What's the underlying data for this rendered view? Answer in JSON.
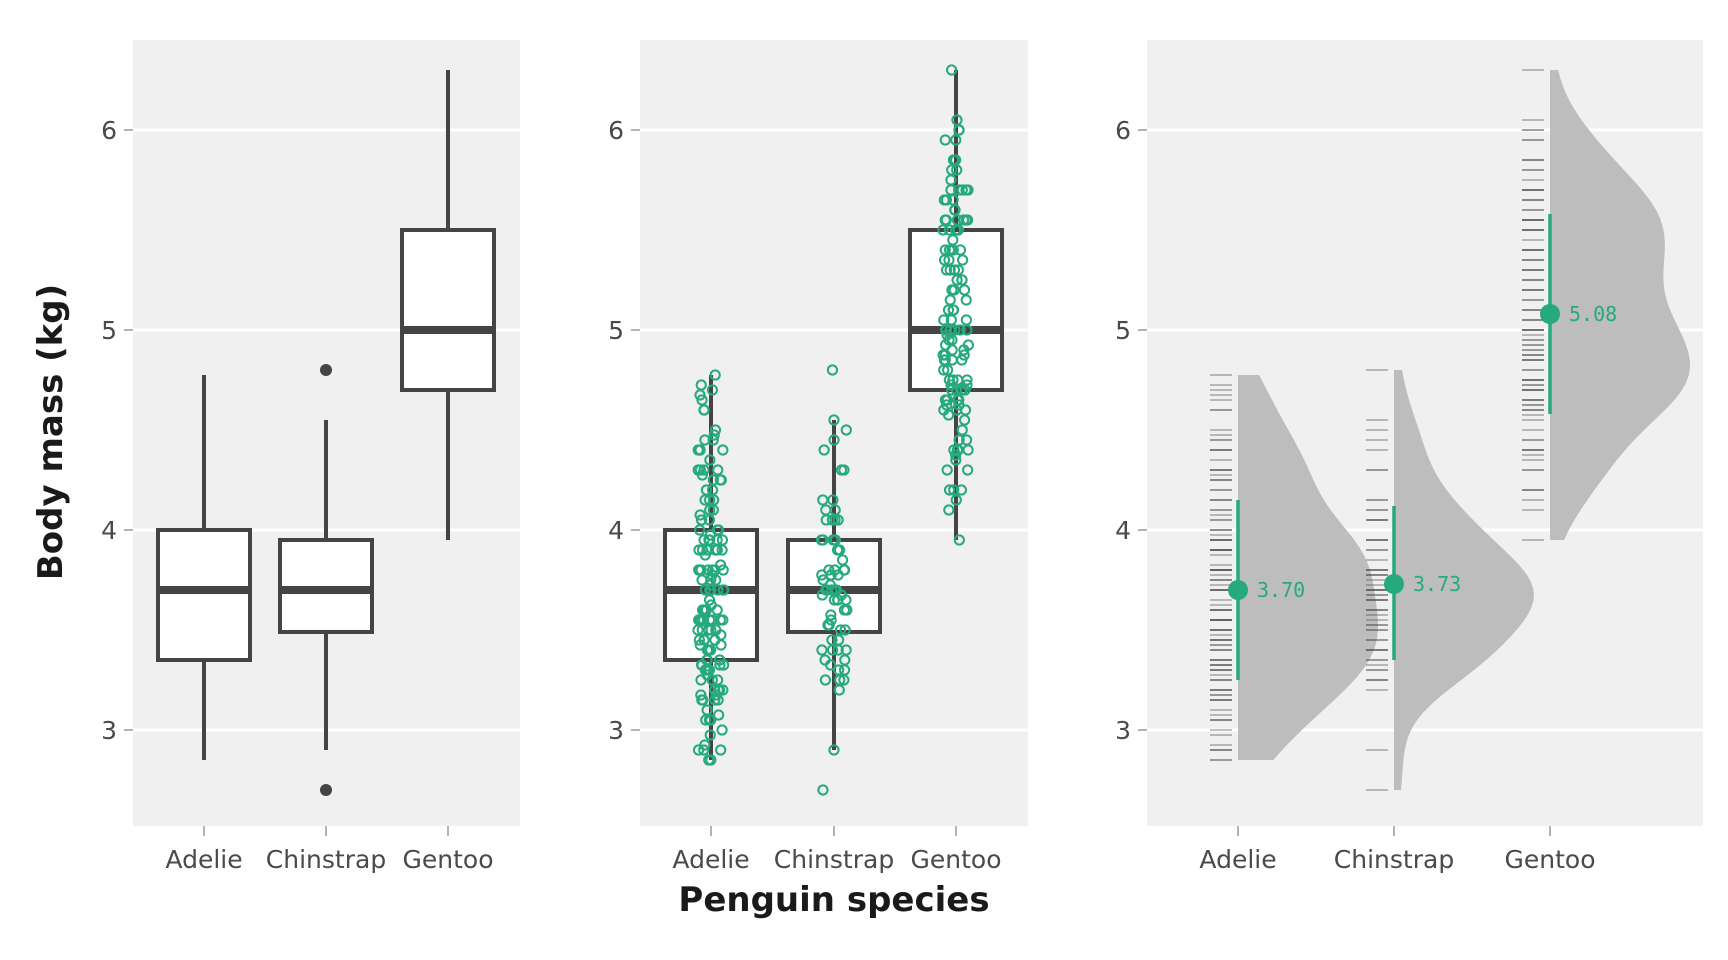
{
  "chart_data": {
    "type": "box",
    "ylabel": "Body mass (kg)",
    "xlabel": "Penguin species",
    "ylim": [
      2.52,
      6.45
    ],
    "yticks": [
      3,
      4,
      5,
      6
    ],
    "ytick_labels": [
      "3",
      "4",
      "5",
      "6"
    ],
    "categories": [
      "Adelie",
      "Chinstrap",
      "Gentoo"
    ],
    "grid": "horizontal major gridlines, white on light grey panel",
    "colors": {
      "panel": "#f0f0f0",
      "grid": "#ffffff",
      "box_stroke": "#444444",
      "accent": "#26a97f",
      "density": "#bdbdbd",
      "rug": "#4a4a4a"
    },
    "panels": [
      {
        "type": "box",
        "boxes": [
          {
            "category": "Adelie",
            "min": 2.85,
            "q1": 3.35,
            "median": 3.7,
            "q3": 4.0,
            "max": 4.775,
            "outliers": []
          },
          {
            "category": "Chinstrap",
            "min": 2.9,
            "q1": 3.49,
            "median": 3.7,
            "q3": 3.95,
            "max": 4.55,
            "outliers": [
              2.7,
              4.8
            ]
          },
          {
            "category": "Gentoo",
            "min": 3.95,
            "q1": 4.7,
            "median": 5.0,
            "q3": 5.5,
            "max": 6.3,
            "outliers": []
          }
        ]
      },
      {
        "type": "box+jitter",
        "points": [
          {
            "category": "Adelie",
            "y": [
              3.75,
              3.8,
              3.25,
              3.45,
              3.65,
              3.625,
              4.675,
              3.475,
              4.25,
              3.3,
              3.7,
              3.2,
              3.8,
              4.4,
              3.7,
              3.45,
              4.5,
              3.325,
              4.2,
              3.4,
              3.6,
              3.8,
              3.95,
              3.8,
              3.8,
              3.55,
              3.2,
              3.15,
              3.95,
              3.25,
              3.9,
              3.3,
              3.9,
              3.325,
              4.15,
              3.95,
              3.55,
              3.3,
              4.65,
              3.15,
              3.9,
              3.1,
              4.4,
              3.0,
              4.6,
              3.425,
              2.975,
              3.45,
              4.15,
              3.5,
              4.3,
              3.45,
              4.05,
              2.9,
              3.7,
              3.55,
              3.8,
              2.85,
              3.75,
              3.15,
              4.4,
              3.6,
              4.05,
              2.85,
              3.95,
              3.35,
              4.1,
              3.05,
              4.45,
              3.6,
              3.9,
              3.55,
              4.15,
              3.7,
              4.25,
              3.7,
              3.9,
              3.55,
              4.0,
              3.2,
              4.7,
              3.8,
              4.2,
              3.35,
              3.55,
              3.8,
              3.5,
              3.95,
              3.6,
              3.55,
              4.3,
              3.4,
              4.45,
              3.3,
              4.3,
              3.7,
              4.35,
              2.9,
              4.1,
              3.725,
              4.725,
              3.075,
              4.25,
              2.925,
              3.55,
              3.75,
              3.9,
              3.175,
              4.775,
              3.825,
              4.6,
              3.2,
              4.275,
              3.9,
              4.075,
              2.9,
              3.775,
              3.35,
              3.325,
              3.15,
              3.5,
              3.45,
              3.875,
              3.05,
              4.0,
              3.275,
              4.3,
              3.05,
              4.0,
              3.325,
              3.5,
              3.5,
              4.475,
              3.425,
              3.9,
              3.175,
              3.975,
              3.4,
              4.4,
              3.25,
              3.95,
              3.6,
              3.35
            ]
          },
          {
            "category": "Chinstrap",
            "y": [
              3.5,
              3.9,
              3.65,
              3.525,
              3.725,
              3.95,
              3.25,
              3.75,
              4.15,
              3.7,
              3.8,
              3.775,
              3.7,
              4.05,
              3.575,
              4.05,
              3.3,
              3.7,
              3.45,
              4.4,
              3.6,
              3.4,
              2.9,
              3.8,
              3.3,
              4.15,
              3.4,
              3.8,
              3.7,
              4.55,
              3.2,
              4.3,
              3.35,
              4.1,
              3.6,
              3.9,
              3.85,
              4.8,
              2.7,
              4.5,
              3.95,
              3.65,
              3.55,
              3.5,
              3.675,
              4.45,
              3.4,
              4.3,
              3.25,
              3.675,
              3.325,
              3.95,
              3.6,
              4.05,
              3.35,
              3.45,
              3.25,
              4.05,
              3.8,
              3.525,
              3.95,
              3.65,
              3.65,
              3.4,
              3.775,
              4.1,
              3.775,
              3.7
            ]
          },
          {
            "category": "Gentoo",
            "y": [
              4.5,
              5.7,
              4.45,
              5.7,
              5.4,
              4.55,
              4.8,
              5.2,
              4.4,
              5.15,
              4.65,
              5.55,
              4.65,
              5.85,
              4.2,
              5.85,
              4.15,
              6.3,
              4.8,
              5.35,
              5.7,
              5.0,
              4.4,
              5.05,
              5.0,
              5.1,
              4.1,
              5.65,
              4.6,
              5.55,
              5.25,
              4.7,
              5.05,
              6.05,
              5.15,
              5.4,
              4.95,
              5.25,
              4.35,
              5.35,
              3.95,
              5.7,
              4.3,
              4.75,
              5.55,
              4.9,
              4.2,
              5.4,
              5.1,
              5.3,
              4.85,
              5.3,
              4.4,
              5.0,
              4.9,
              5.05,
              4.3,
              5.0,
              4.45,
              5.55,
              4.2,
              5.3,
              4.4,
              5.65,
              4.7,
              5.7,
              4.65,
              5.8,
              4.7,
              5.55,
              4.75,
              5.0,
              5.1,
              5.2,
              4.7,
              5.8,
              4.6,
              6.0,
              4.75,
              5.95,
              4.625,
              5.45,
              4.725,
              5.35,
              4.75,
              5.6,
              4.6,
              5.3,
              4.875,
              5.55,
              4.95,
              5.4,
              4.75,
              5.65,
              4.85,
              5.2,
              4.925,
              4.875,
              4.625,
              5.25,
              4.85,
              5.6,
              4.975,
              5.5,
              4.725,
              5.5,
              4.7,
              5.5,
              4.575,
              5.5,
              5.0,
              5.95,
              4.65,
              5.5,
              4.375,
              5.85,
              4.875,
              6.0,
              4.925,
              4.85,
              5.75,
              5.2,
              5.4
            ]
          }
        ]
      },
      {
        "type": "halfeye+rug",
        "means": [
          {
            "category": "Adelie",
            "mean": 3.7,
            "label": "3.70",
            "interval": [
              3.25,
              4.15
            ]
          },
          {
            "category": "Chinstrap",
            "mean": 3.73,
            "label": "3.73",
            "interval": [
              3.35,
              4.12
            ]
          },
          {
            "category": "Gentoo",
            "mean": 5.08,
            "label": "5.08",
            "interval": [
              4.58,
              5.58
            ]
          }
        ],
        "density_note": "Half-violin density per category; rug ticks at observed values (same data as panel 2)"
      }
    ]
  }
}
